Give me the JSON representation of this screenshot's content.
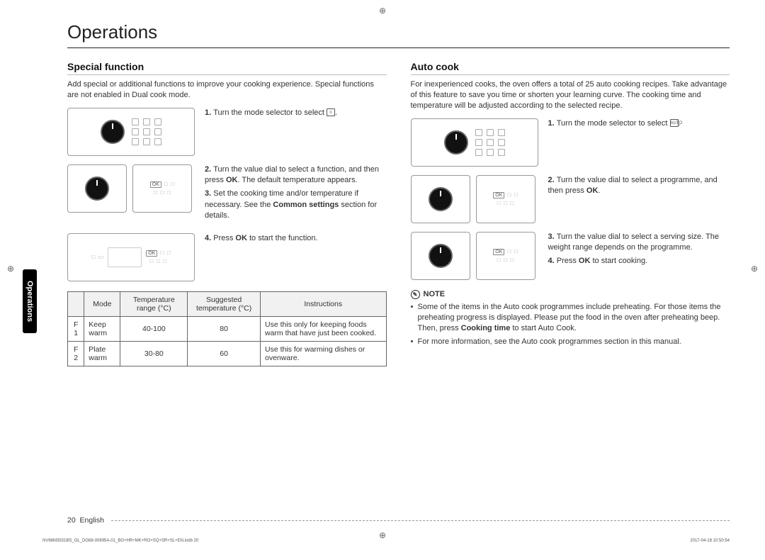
{
  "page_title": "Operations",
  "side_tab": "Operations",
  "left": {
    "heading": "Special function",
    "intro": "Add special or additional functions to improve your cooking experience. Special functions are not enabled in Dual cook mode.",
    "steps": {
      "s1_prefix": "1. ",
      "s1": "Turn the mode selector to select ",
      "s2_prefix": "2. ",
      "s2a": "Turn the value dial to select a function, and then press ",
      "s2_ok": "OK",
      "s2b": ". The default temperature appears.",
      "s3_prefix": "3. ",
      "s3a": "Set the cooking time and/or temperature if necessary. See the ",
      "s3_bold": "Common settings",
      "s3b": " section for details.",
      "s4_prefix": "4. ",
      "s4a": "Press ",
      "s4_ok": "OK",
      "s4b": " to start the function."
    },
    "table": {
      "headers": [
        "",
        "Mode",
        "Temperature range (°C)",
        "Suggested temperature (°C)",
        "Instructions"
      ],
      "rows": [
        [
          "F 1",
          "Keep warm",
          "40-100",
          "80",
          "Use this only for keeping foods warm that have just been cooked."
        ],
        [
          "F 2",
          "Plate warm",
          "30-80",
          "60",
          "Use this for warming dishes or ovenware."
        ]
      ]
    }
  },
  "right": {
    "heading": "Auto cook",
    "intro": "For inexperienced cooks, the oven offers a total of 25 auto cooking recipes. Take advantage of this feature to save you time or shorten your learning curve. The cooking time and temperature will be adjusted according to the selected recipe.",
    "steps": {
      "s1_prefix": "1. ",
      "s1": "Turn the mode selector to select ",
      "s1_icon": "AUTO",
      "s2_prefix": "2. ",
      "s2a": "Turn the value dial to select a programme, and then press ",
      "s2_ok": "OK",
      "s2b": ".",
      "s3_prefix": "3. ",
      "s3": "Turn the value dial to select a serving size. The weight range depends on the programme.",
      "s4_prefix": "4. ",
      "s4a": "Press ",
      "s4_ok": "OK",
      "s4b": " to start cooking."
    },
    "note_label": "NOTE",
    "notes": {
      "n1a": "Some of the items in the Auto cook programmes include preheating. For those items the preheating progress is displayed. Please put the food in the oven after preheating beep. Then, press ",
      "n1_bold": "Cooking time",
      "n1b": " to start Auto Cook.",
      "n2": "For more information, see the Auto cook programmes section in this manual."
    }
  },
  "footer": {
    "page": "20",
    "lang": "English"
  },
  "imprint": {
    "left": "NV66M3531BS_OL_DG68-00895A-01_BG+HR+MK+RO+SQ+SR+SL+EN.indb   20",
    "right": "2017-04-18   10:50:54"
  }
}
